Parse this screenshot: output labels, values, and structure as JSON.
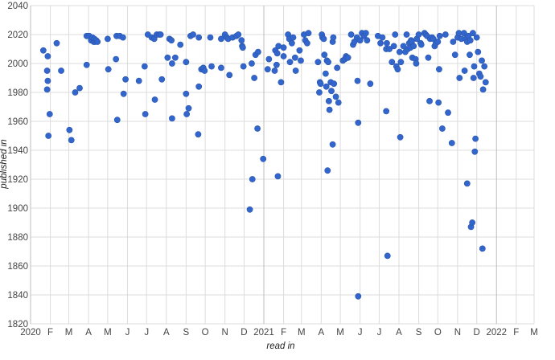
{
  "chart_data": {
    "type": "scatter",
    "xlabel": "read in",
    "ylabel": "published in",
    "x_range": [
      "2020-01-01",
      "2022-03-01"
    ],
    "ylim": [
      1820,
      2040
    ],
    "y_ticks": [
      1820,
      1840,
      1860,
      1880,
      1900,
      1920,
      1940,
      1960,
      1980,
      2000,
      2020,
      2040
    ],
    "x_ticks": [
      {
        "date": "2020-01-01",
        "label": "2020",
        "major": true
      },
      {
        "date": "2020-02-01",
        "label": "F"
      },
      {
        "date": "2020-03-01",
        "label": "M"
      },
      {
        "date": "2020-04-01",
        "label": "A"
      },
      {
        "date": "2020-05-01",
        "label": "M"
      },
      {
        "date": "2020-06-01",
        "label": "J"
      },
      {
        "date": "2020-07-01",
        "label": "J"
      },
      {
        "date": "2020-08-01",
        "label": "A"
      },
      {
        "date": "2020-09-01",
        "label": "S"
      },
      {
        "date": "2020-10-01",
        "label": "O"
      },
      {
        "date": "2020-11-01",
        "label": "N"
      },
      {
        "date": "2020-12-01",
        "label": "D"
      },
      {
        "date": "2021-01-01",
        "label": "2021",
        "major": true
      },
      {
        "date": "2021-02-01",
        "label": "F"
      },
      {
        "date": "2021-03-01",
        "label": "M"
      },
      {
        "date": "2021-04-01",
        "label": "A"
      },
      {
        "date": "2021-05-01",
        "label": "M"
      },
      {
        "date": "2021-06-01",
        "label": "J"
      },
      {
        "date": "2021-07-01",
        "label": "J"
      },
      {
        "date": "2021-08-01",
        "label": "A"
      },
      {
        "date": "2021-09-01",
        "label": "S"
      },
      {
        "date": "2021-10-01",
        "label": "O"
      },
      {
        "date": "2021-11-01",
        "label": "N"
      },
      {
        "date": "2021-12-01",
        "label": "D"
      },
      {
        "date": "2022-01-01",
        "label": "2022",
        "major": true
      },
      {
        "date": "2022-02-01",
        "label": "F"
      },
      {
        "date": "2022-03-01",
        "label": "M"
      }
    ],
    "grid": true,
    "point_color": "#3366cc",
    "points": [
      [
        "2020-01-21",
        2009
      ],
      [
        "2020-01-28",
        2005
      ],
      [
        "2020-01-27",
        1995
      ],
      [
        "2020-01-28",
        1988
      ],
      [
        "2020-01-27",
        1982
      ],
      [
        "2020-01-29",
        1950
      ],
      [
        "2020-01-31",
        1965
      ],
      [
        "2020-02-11",
        2014
      ],
      [
        "2020-02-18",
        1995
      ],
      [
        "2020-03-02",
        1954
      ],
      [
        "2020-03-05",
        1947
      ],
      [
        "2020-03-11",
        1980
      ],
      [
        "2020-03-18",
        1983
      ],
      [
        "2020-03-29",
        2019
      ],
      [
        "2020-04-02",
        2019
      ],
      [
        "2020-04-05",
        2016
      ],
      [
        "2020-04-07",
        2018
      ],
      [
        "2020-04-09",
        2015
      ],
      [
        "2020-04-10",
        2017
      ],
      [
        "2020-04-11",
        2015
      ],
      [
        "2020-04-13",
        2016
      ],
      [
        "2020-04-15",
        2015
      ],
      [
        "2020-03-29",
        1999
      ],
      [
        "2020-05-01",
        2017
      ],
      [
        "2020-05-02",
        1996
      ],
      [
        "2020-05-15",
        2019
      ],
      [
        "2020-05-14",
        2003
      ],
      [
        "2020-05-16",
        1961
      ],
      [
        "2020-05-20",
        2019
      ],
      [
        "2020-05-25",
        2018
      ],
      [
        "2020-05-26",
        1979
      ],
      [
        "2020-05-29",
        1989
      ],
      [
        "2020-06-19",
        1988
      ],
      [
        "2020-06-28",
        1998
      ],
      [
        "2020-06-29",
        1965
      ],
      [
        "2020-07-03",
        2020
      ],
      [
        "2020-07-09",
        2018
      ],
      [
        "2020-07-13",
        2017
      ],
      [
        "2020-07-14",
        1975
      ],
      [
        "2020-07-17",
        2020
      ],
      [
        "2020-07-21",
        2020
      ],
      [
        "2020-07-23",
        2020
      ],
      [
        "2020-07-25",
        1989
      ],
      [
        "2020-08-03",
        2004
      ],
      [
        "2020-08-06",
        2017
      ],
      [
        "2020-08-09",
        2016
      ],
      [
        "2020-08-10",
        2000
      ],
      [
        "2020-08-10",
        1962
      ],
      [
        "2020-08-15",
        2004
      ],
      [
        "2020-08-23",
        2013
      ],
      [
        "2020-09-01",
        2001
      ],
      [
        "2020-09-01",
        1979
      ],
      [
        "2020-09-02",
        1965
      ],
      [
        "2020-09-05",
        1969
      ],
      [
        "2020-09-08",
        2019
      ],
      [
        "2020-09-12",
        2020
      ],
      [
        "2020-09-21",
        2018
      ],
      [
        "2020-09-21",
        1984
      ],
      [
        "2020-09-20",
        1951
      ],
      [
        "2020-09-25",
        1996
      ],
      [
        "2020-09-28",
        1997
      ],
      [
        "2020-09-30",
        1995
      ],
      [
        "2020-10-09",
        2018
      ],
      [
        "2020-10-11",
        1998
      ],
      [
        "2020-10-26",
        2017
      ],
      [
        "2020-10-26",
        1997
      ],
      [
        "2020-11-01",
        2020
      ],
      [
        "2020-11-04",
        2018
      ],
      [
        "2020-11-06",
        2017
      ],
      [
        "2020-11-08",
        1992
      ],
      [
        "2020-11-13",
        2018
      ],
      [
        "2020-11-19",
        2019
      ],
      [
        "2020-11-22",
        2020
      ],
      [
        "2020-11-27",
        2016
      ],
      [
        "2020-11-28",
        2012
      ],
      [
        "2020-11-29",
        2011
      ],
      [
        "2020-11-30",
        1998
      ],
      [
        "2020-12-13",
        2000
      ],
      [
        "2020-12-17",
        1990
      ],
      [
        "2020-12-19",
        2006
      ],
      [
        "2020-12-10",
        1899
      ],
      [
        "2020-12-14",
        1920
      ],
      [
        "2020-12-23",
        2008
      ],
      [
        "2020-12-22",
        1955
      ],
      [
        "2020-12-31",
        1934
      ],
      [
        "2021-01-09",
        2003
      ],
      [
        "2021-01-07",
        1996
      ],
      [
        "2021-01-18",
        1995
      ],
      [
        "2021-01-19",
        2009
      ],
      [
        "2021-01-21",
        1999
      ],
      [
        "2021-01-22",
        2007
      ],
      [
        "2021-01-24",
        2012
      ],
      [
        "2021-01-23",
        1922
      ],
      [
        "2021-01-28",
        1987
      ],
      [
        "2021-02-01",
        2005
      ],
      [
        "2021-02-01",
        2011
      ],
      [
        "2021-02-08",
        2020
      ],
      [
        "2021-02-10",
        2017
      ],
      [
        "2021-02-11",
        2001
      ],
      [
        "2021-02-14",
        2014
      ],
      [
        "2021-02-16",
        2018
      ],
      [
        "2021-02-19",
        2004
      ],
      [
        "2021-02-20",
        1995
      ],
      [
        "2021-02-26",
        2009
      ],
      [
        "2021-02-28",
        2002
      ],
      [
        "2021-03-05",
        2020
      ],
      [
        "2021-03-07",
        2016
      ],
      [
        "2021-03-10",
        2014
      ],
      [
        "2021-03-12",
        2021
      ],
      [
        "2021-03-27",
        2001
      ],
      [
        "2021-03-29",
        1980
      ],
      [
        "2021-03-30",
        1987
      ],
      [
        "2021-03-31",
        1986
      ],
      [
        "2021-04-02",
        2020
      ],
      [
        "2021-04-03",
        2018
      ],
      [
        "2021-04-05",
        2017
      ],
      [
        "2021-04-06",
        2006
      ],
      [
        "2021-04-08",
        1993
      ],
      [
        "2021-04-09",
        1984
      ],
      [
        "2021-04-10",
        2002
      ],
      [
        "2021-04-12",
        2001
      ],
      [
        "2021-04-11",
        1926
      ],
      [
        "2021-04-13",
        1974
      ],
      [
        "2021-04-14",
        1968
      ],
      [
        "2021-04-16",
        1987
      ],
      [
        "2021-04-17",
        1981
      ],
      [
        "2021-04-19",
        2015
      ],
      [
        "2021-04-20",
        2018
      ],
      [
        "2021-04-19",
        1944
      ],
      [
        "2021-04-21",
        1986
      ],
      [
        "2021-04-24",
        1977
      ],
      [
        "2021-04-26",
        1997
      ],
      [
        "2021-04-28",
        1973
      ],
      [
        "2021-05-05",
        2002
      ],
      [
        "2021-05-08",
        2003
      ],
      [
        "2021-05-10",
        2005
      ],
      [
        "2021-05-11",
        2004
      ],
      [
        "2021-05-13",
        2004
      ],
      [
        "2021-05-18",
        2020
      ],
      [
        "2021-05-21",
        2013
      ],
      [
        "2021-05-23",
        2015
      ],
      [
        "2021-05-27",
        2018
      ],
      [
        "2021-05-28",
        1988
      ],
      [
        "2021-05-29",
        1959
      ],
      [
        "2021-05-29",
        1839
      ],
      [
        "2021-06-01",
        2016
      ],
      [
        "2021-06-04",
        2021
      ],
      [
        "2021-06-07",
        2019
      ],
      [
        "2021-06-10",
        2021
      ],
      [
        "2021-06-12",
        2016
      ],
      [
        "2021-06-17",
        1986
      ],
      [
        "2021-06-29",
        2019
      ],
      [
        "2021-07-03",
        2014
      ],
      [
        "2021-07-06",
        2018
      ],
      [
        "2021-07-12",
        2010
      ],
      [
        "2021-07-13",
        2014
      ],
      [
        "2021-07-12",
        1967
      ],
      [
        "2021-07-14",
        1867
      ],
      [
        "2021-07-17",
        2010
      ],
      [
        "2021-07-21",
        2001
      ],
      [
        "2021-07-24",
        2012
      ],
      [
        "2021-07-26",
        2020
      ],
      [
        "2021-07-28",
        1998
      ],
      [
        "2021-07-30",
        1996
      ],
      [
        "2021-08-02",
        2008
      ],
      [
        "2021-08-03",
        1949
      ],
      [
        "2021-08-04",
        2001
      ],
      [
        "2021-08-08",
        2012
      ],
      [
        "2021-08-11",
        2008
      ],
      [
        "2021-08-13",
        2020
      ],
      [
        "2021-08-15",
        2010
      ],
      [
        "2021-08-17",
        2014
      ],
      [
        "2021-08-19",
        2011
      ],
      [
        "2021-08-20",
        2016
      ],
      [
        "2021-08-21",
        2015
      ],
      [
        "2021-08-22",
        2004
      ],
      [
        "2021-08-24",
        2012
      ],
      [
        "2021-08-27",
        2003
      ],
      [
        "2021-08-28",
        2000
      ],
      [
        "2021-08-29",
        2017
      ],
      [
        "2021-09-01",
        2020
      ],
      [
        "2021-09-04",
        2014
      ],
      [
        "2021-09-05",
        2013
      ],
      [
        "2021-09-10",
        2021
      ],
      [
        "2021-09-12",
        2020
      ],
      [
        "2021-09-14",
        2019
      ],
      [
        "2021-09-16",
        2004
      ],
      [
        "2021-09-18",
        1974
      ],
      [
        "2021-09-19",
        2017
      ],
      [
        "2021-09-22",
        2018
      ],
      [
        "2021-09-24",
        2017
      ],
      [
        "2021-09-26",
        2012
      ],
      [
        "2021-09-28",
        2014
      ],
      [
        "2021-10-01",
        2015
      ],
      [
        "2021-10-03",
        1996
      ],
      [
        "2021-10-02",
        1973
      ],
      [
        "2021-10-04",
        2019
      ],
      [
        "2021-10-08",
        1955
      ],
      [
        "2021-10-13",
        2020
      ],
      [
        "2021-10-17",
        1966
      ],
      [
        "2021-10-23",
        1945
      ],
      [
        "2021-10-25",
        2015
      ],
      [
        "2021-10-28",
        2006
      ],
      [
        "2021-11-01",
        2018
      ],
      [
        "2021-11-03",
        2021
      ],
      [
        "2021-11-04",
        1990
      ],
      [
        "2021-11-07",
        2017
      ],
      [
        "2021-11-11",
        2021
      ],
      [
        "2021-11-12",
        1995
      ],
      [
        "2021-11-14",
        2017
      ],
      [
        "2021-11-16",
        2015
      ],
      [
        "2021-11-16",
        1917
      ],
      [
        "2021-11-18",
        2019
      ],
      [
        "2021-11-21",
        2016
      ],
      [
        "2021-11-20",
        2006
      ],
      [
        "2021-11-22",
        1887
      ],
      [
        "2021-11-24",
        1890
      ],
      [
        "2021-11-25",
        2021
      ],
      [
        "2021-11-26",
        1990
      ],
      [
        "2021-11-27",
        1998
      ],
      [
        "2021-11-28",
        1939
      ],
      [
        "2021-11-29",
        1948
      ],
      [
        "2021-12-01",
        2018
      ],
      [
        "2021-12-03",
        2008
      ],
      [
        "2021-12-05",
        1993
      ],
      [
        "2021-12-07",
        1991
      ],
      [
        "2021-12-09",
        2002
      ],
      [
        "2021-12-10",
        1872
      ],
      [
        "2021-12-11",
        1982
      ],
      [
        "2021-12-13",
        1998
      ],
      [
        "2021-12-15",
        1987
      ]
    ]
  }
}
